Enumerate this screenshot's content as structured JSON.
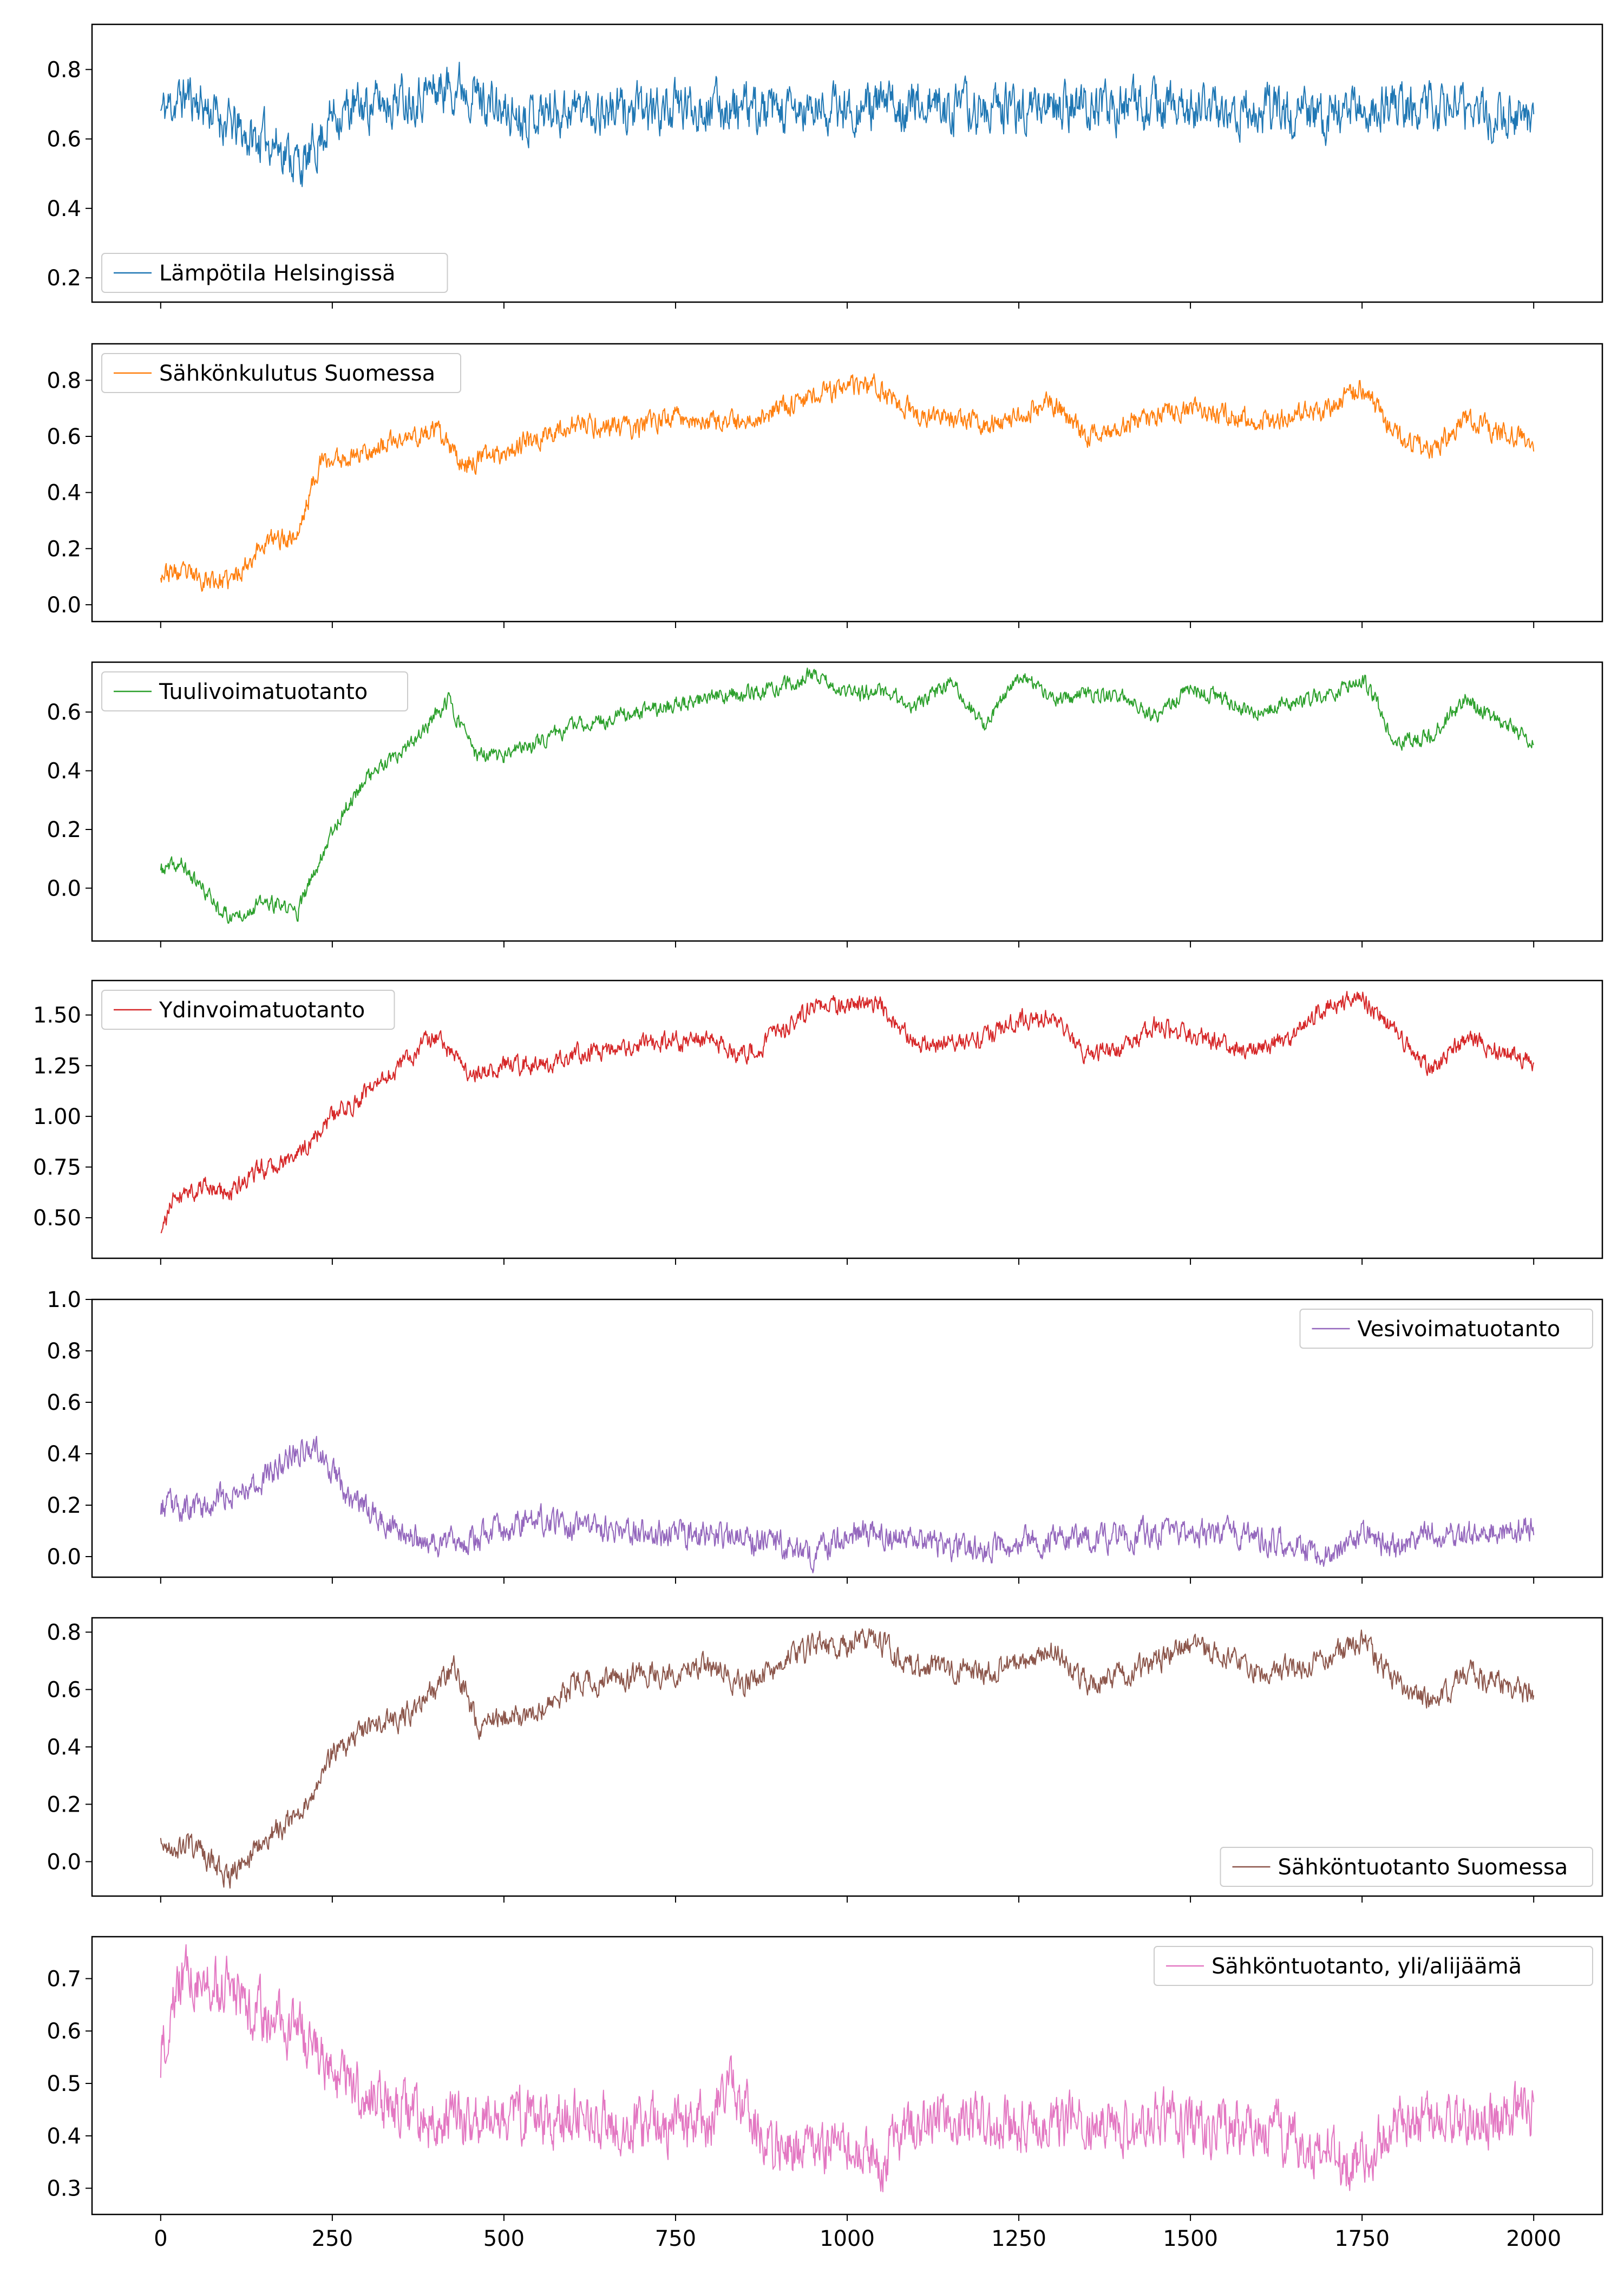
{
  "figure": {
    "type": "line",
    "x_axis": {
      "range": [
        -100,
        2100
      ],
      "ticks": [
        0,
        250,
        500,
        750,
        1000,
        1250,
        1500,
        1750,
        2000
      ]
    }
  },
  "chart_data": [
    {
      "type": "line",
      "name": "Lämpötila Helsingissä",
      "legend": "Lämpötila Helsingissä",
      "legend_position": "lower-left",
      "color": "#1f77b4",
      "ylim": [
        0.13,
        0.93
      ],
      "yticks": [
        "0.2",
        "0.4",
        "0.6",
        "0.8"
      ],
      "ytick_values": [
        0.2,
        0.4,
        0.6,
        0.8
      ],
      "trend_x": [
        0,
        40,
        80,
        130,
        160,
        210,
        250,
        350,
        440,
        500,
        600,
        700,
        800,
        900,
        1000,
        1100,
        1200,
        1300,
        1400,
        1500,
        1600,
        1700,
        1800,
        1900,
        2000
      ],
      "trend_y": [
        0.68,
        0.73,
        0.67,
        0.6,
        0.6,
        0.52,
        0.67,
        0.72,
        0.76,
        0.67,
        0.69,
        0.68,
        0.7,
        0.67,
        0.69,
        0.7,
        0.68,
        0.7,
        0.69,
        0.69,
        0.68,
        0.67,
        0.7,
        0.68,
        0.67
      ],
      "noise": 0.045,
      "seed": 11
    },
    {
      "type": "line",
      "name": "Sähkönkulutus Suomessa",
      "legend": "Sähkönkulutus Suomessa",
      "legend_position": "upper-left",
      "color": "#ff7f0e",
      "ylim": [
        -0.06,
        0.93
      ],
      "yticks": [
        "0.0",
        "0.2",
        "0.4",
        "0.6",
        "0.8"
      ],
      "ytick_values": [
        0.0,
        0.2,
        0.4,
        0.6,
        0.8
      ],
      "trend_x": [
        0,
        50,
        100,
        150,
        200,
        230,
        300,
        400,
        440,
        500,
        600,
        700,
        750,
        800,
        850,
        950,
        1000,
        1040,
        1100,
        1200,
        1250,
        1300,
        1350,
        1400,
        1500,
        1600,
        1700,
        1750,
        1800,
        1850,
        1900,
        2000
      ],
      "trend_y": [
        0.12,
        0.1,
        0.08,
        0.22,
        0.25,
        0.5,
        0.55,
        0.62,
        0.5,
        0.55,
        0.64,
        0.63,
        0.68,
        0.64,
        0.65,
        0.75,
        0.77,
        0.78,
        0.68,
        0.64,
        0.68,
        0.72,
        0.6,
        0.65,
        0.7,
        0.66,
        0.7,
        0.78,
        0.6,
        0.55,
        0.66,
        0.58
      ],
      "noise": 0.025,
      "seed": 23
    },
    {
      "type": "line",
      "name": "Tuulivoimatuotanto",
      "legend": "Tuulivoimatuotanto",
      "legend_position": "upper-left",
      "color": "#2ca02c",
      "ylim": [
        -0.18,
        0.77
      ],
      "yticks": [
        "0.0",
        "0.2",
        "0.4",
        "0.6"
      ],
      "ytick_values": [
        0.0,
        0.2,
        0.4,
        0.6
      ],
      "trend_x": [
        0,
        30,
        60,
        100,
        150,
        200,
        250,
        300,
        350,
        420,
        460,
        500,
        600,
        700,
        800,
        900,
        950,
        1000,
        1050,
        1100,
        1150,
        1200,
        1250,
        1300,
        1400,
        1450,
        1500,
        1600,
        1700,
        1750,
        1800,
        1850,
        1900,
        2000
      ],
      "trend_y": [
        0.06,
        0.08,
        0.0,
        -0.1,
        -0.05,
        -0.08,
        0.2,
        0.38,
        0.45,
        0.64,
        0.45,
        0.45,
        0.55,
        0.6,
        0.65,
        0.68,
        0.73,
        0.66,
        0.67,
        0.62,
        0.7,
        0.56,
        0.72,
        0.65,
        0.66,
        0.58,
        0.68,
        0.6,
        0.66,
        0.72,
        0.5,
        0.52,
        0.64,
        0.5
      ],
      "noise": 0.018,
      "seed": 37
    },
    {
      "type": "line",
      "name": "Ydinvoimatuotanto",
      "legend": "Ydinvoimatuotanto",
      "legend_position": "upper-left",
      "color": "#d62728",
      "ylim": [
        0.3,
        1.67
      ],
      "yticks": [
        "0.50",
        "0.75",
        "1.00",
        "1.25",
        "1.50"
      ],
      "ytick_values": [
        0.5,
        0.75,
        1.0,
        1.25,
        1.5
      ],
      "trend_x": [
        0,
        20,
        60,
        100,
        150,
        200,
        250,
        300,
        350,
        400,
        450,
        500,
        550,
        600,
        700,
        800,
        850,
        950,
        1000,
        1050,
        1100,
        1200,
        1250,
        1300,
        1350,
        1400,
        1450,
        1500,
        1600,
        1650,
        1700,
        1750,
        1800,
        1850,
        1900,
        2000
      ],
      "trend_y": [
        0.4,
        0.62,
        0.65,
        0.62,
        0.75,
        0.8,
        1.0,
        1.12,
        1.25,
        1.4,
        1.2,
        1.25,
        1.25,
        1.3,
        1.35,
        1.38,
        1.3,
        1.53,
        1.55,
        1.55,
        1.35,
        1.38,
        1.48,
        1.5,
        1.3,
        1.33,
        1.45,
        1.4,
        1.32,
        1.4,
        1.55,
        1.58,
        1.42,
        1.22,
        1.38,
        1.28
      ],
      "noise": 0.032,
      "seed": 41
    },
    {
      "type": "line",
      "name": "Vesivoimatuotanto",
      "legend": "Vesivoimatuotanto",
      "legend_position": "upper-right",
      "color": "#9467bd",
      "ylim": [
        -0.08,
        1.0
      ],
      "yticks": [
        "0.0",
        "0.2",
        "0.4",
        "0.6",
        "0.8",
        "1.0"
      ],
      "ytick_values": [
        0.0,
        0.2,
        0.4,
        0.6,
        0.8,
        1.0
      ],
      "trend_x": [
        0,
        50,
        100,
        150,
        200,
        230,
        270,
        300,
        350,
        400,
        450,
        550,
        600,
        700,
        800,
        900,
        950,
        1000,
        1100,
        1200,
        1250,
        1300,
        1400,
        1500,
        1600,
        1700,
        1750,
        1800,
        1850,
        1900,
        1950,
        2000
      ],
      "trend_y": [
        0.2,
        0.18,
        0.25,
        0.3,
        0.42,
        0.42,
        0.25,
        0.18,
        0.08,
        0.05,
        0.07,
        0.15,
        0.12,
        0.1,
        0.08,
        0.05,
        0.0,
        0.1,
        0.05,
        0.03,
        0.05,
        0.07,
        0.08,
        0.1,
        0.08,
        0.0,
        0.1,
        0.03,
        0.1,
        0.08,
        0.1,
        0.12
      ],
      "noise": 0.035,
      "seed": 53
    },
    {
      "type": "line",
      "name": "Sähköntuotanto Suomessa",
      "legend": "Sähköntuotanto Suomessa",
      "legend_position": "lower-right",
      "color": "#8c564b",
      "ylim": [
        -0.12,
        0.85
      ],
      "yticks": [
        "0.0",
        "0.2",
        "0.4",
        "0.6",
        "0.8"
      ],
      "ytick_values": [
        0.0,
        0.2,
        0.4,
        0.6,
        0.8
      ],
      "trend_x": [
        0,
        50,
        100,
        150,
        200,
        250,
        300,
        350,
        400,
        430,
        460,
        500,
        550,
        600,
        700,
        800,
        850,
        950,
        1000,
        1040,
        1100,
        1200,
        1250,
        1300,
        1350,
        1400,
        1450,
        1500,
        1600,
        1700,
        1750,
        1800,
        1850,
        1900,
        2000
      ],
      "trend_y": [
        0.05,
        0.05,
        -0.05,
        0.08,
        0.15,
        0.38,
        0.45,
        0.5,
        0.6,
        0.68,
        0.48,
        0.5,
        0.52,
        0.62,
        0.65,
        0.68,
        0.62,
        0.75,
        0.75,
        0.78,
        0.68,
        0.66,
        0.7,
        0.73,
        0.62,
        0.65,
        0.7,
        0.76,
        0.66,
        0.7,
        0.78,
        0.62,
        0.55,
        0.66,
        0.58
      ],
      "noise": 0.028,
      "seed": 67
    },
    {
      "type": "line",
      "name": "Sähköntuotanto, yli/alijäämä",
      "legend": "Sähköntuotanto, yli/alijäämä",
      "legend_position": "upper-right",
      "color": "#e377c2",
      "ylim": [
        0.25,
        0.78
      ],
      "yticks": [
        "0.3",
        "0.4",
        "0.5",
        "0.6",
        "0.7"
      ],
      "ytick_values": [
        0.3,
        0.4,
        0.5,
        0.6,
        0.7
      ],
      "trend_x": [
        0,
        30,
        80,
        120,
        160,
        200,
        250,
        300,
        350,
        400,
        450,
        500,
        600,
        700,
        800,
        830,
        870,
        900,
        950,
        1000,
        1050,
        1100,
        1200,
        1300,
        1400,
        1500,
        1600,
        1700,
        1750,
        1800,
        1850,
        1900,
        2000
      ],
      "trend_y": [
        0.55,
        0.7,
        0.7,
        0.66,
        0.62,
        0.6,
        0.52,
        0.48,
        0.45,
        0.42,
        0.43,
        0.44,
        0.43,
        0.42,
        0.42,
        0.5,
        0.42,
        0.38,
        0.37,
        0.38,
        0.36,
        0.42,
        0.43,
        0.42,
        0.43,
        0.42,
        0.42,
        0.36,
        0.35,
        0.42,
        0.43,
        0.42,
        0.45
      ],
      "noise": 0.035,
      "seed": 79
    }
  ]
}
